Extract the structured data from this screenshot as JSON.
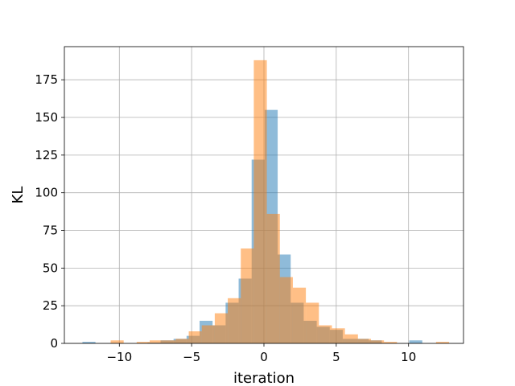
{
  "chart_data": {
    "type": "bar",
    "title": "",
    "xlabel": "iteration",
    "ylabel": "KL",
    "xlim": [
      -13.8,
      13.8
    ],
    "ylim": [
      0,
      197
    ],
    "x_ticks": [
      -10,
      -5,
      0,
      5,
      10
    ],
    "x_tick_labels": [
      "−10",
      "−5",
      "0",
      "5",
      "10"
    ],
    "y_ticks": [
      0,
      25,
      50,
      75,
      100,
      125,
      150,
      175
    ],
    "y_tick_labels": [
      "0",
      "25",
      "50",
      "75",
      "100",
      "125",
      "150",
      "175"
    ],
    "grid": true,
    "legend": null,
    "series": [
      {
        "color": "#1f77b4",
        "opacity": 0.5,
        "bins": [
          [
            -12.55,
            -11.65,
            1
          ],
          [
            -8.05,
            -7.15,
            0.5
          ],
          [
            -7.15,
            -6.25,
            2
          ],
          [
            -6.25,
            -5.35,
            3
          ],
          [
            -5.35,
            -4.45,
            5
          ],
          [
            -4.45,
            -3.55,
            15
          ],
          [
            -3.55,
            -2.65,
            12
          ],
          [
            -2.65,
            -1.75,
            27
          ],
          [
            -1.75,
            -0.85,
            43
          ],
          [
            -0.85,
            0.05,
            122
          ],
          [
            0.05,
            0.95,
            155
          ],
          [
            0.95,
            1.85,
            59
          ],
          [
            1.85,
            2.75,
            27
          ],
          [
            2.75,
            3.65,
            15
          ],
          [
            3.65,
            4.55,
            11
          ],
          [
            4.55,
            5.45,
            9
          ],
          [
            5.45,
            6.35,
            3
          ],
          [
            6.35,
            7.25,
            3
          ],
          [
            7.25,
            8.15,
            2
          ],
          [
            10.05,
            10.95,
            2
          ]
        ]
      },
      {
        "color": "#ff7f0e",
        "opacity": 0.5,
        "bins": [
          [
            -10.6,
            -9.7,
            2
          ],
          [
            -8.8,
            -7.9,
            1
          ],
          [
            -7.9,
            -7.0,
            2
          ],
          [
            -7.0,
            -6.1,
            2
          ],
          [
            -6.1,
            -5.2,
            3
          ],
          [
            -5.2,
            -4.3,
            8
          ],
          [
            -4.3,
            -3.4,
            12
          ],
          [
            -3.4,
            -2.5,
            20
          ],
          [
            -2.5,
            -1.6,
            30
          ],
          [
            -1.6,
            -0.7,
            63
          ],
          [
            -0.7,
            0.2,
            188
          ],
          [
            0.2,
            1.1,
            86
          ],
          [
            1.1,
            2.0,
            44
          ],
          [
            2.0,
            2.9,
            37
          ],
          [
            2.9,
            3.8,
            27
          ],
          [
            3.8,
            4.7,
            12
          ],
          [
            4.7,
            5.6,
            10
          ],
          [
            5.6,
            6.5,
            6
          ],
          [
            6.5,
            7.4,
            3
          ],
          [
            7.4,
            8.3,
            2
          ],
          [
            8.3,
            9.2,
            1
          ],
          [
            11.9,
            12.8,
            1
          ]
        ]
      }
    ]
  }
}
